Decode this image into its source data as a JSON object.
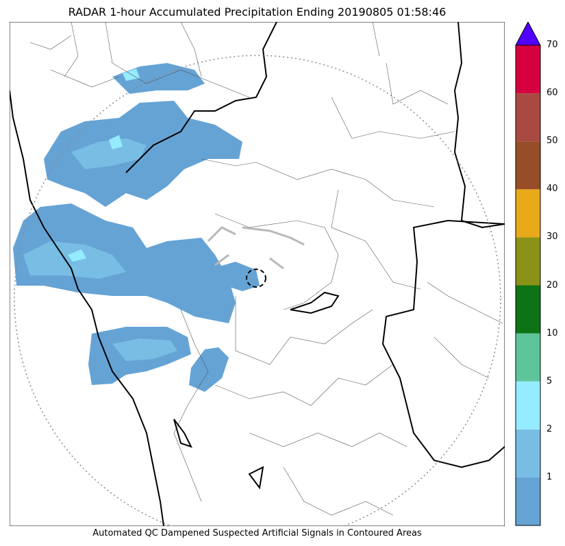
{
  "title": "RADAR 1-hour Accumulated Precipitation Ending 20190805 01:58:46",
  "footer": "Automated QC Dampened Suspected Artificial Signals in Contoured Areas",
  "legend": {
    "ticks": [
      "1",
      "2",
      "5",
      "10",
      "20",
      "30",
      "40",
      "50",
      "60",
      "70"
    ],
    "colors": [
      "#65a3d5",
      "#78bde4",
      "#95ecfe",
      "#5ec49c",
      "#0e7317",
      "#8b9217",
      "#e8a91b",
      "#974d27",
      "#a94942",
      "#d60041",
      "#5200fe"
    ]
  },
  "colors": {
    "rain_light": "#65a3d5",
    "rain_medium": "#78bde4",
    "rain_cyan": "#95ecfe",
    "artifact_grey": "#b8b8b8",
    "border_major": "#000000",
    "border_minor": "#555555",
    "range_ring": "#888888"
  }
}
